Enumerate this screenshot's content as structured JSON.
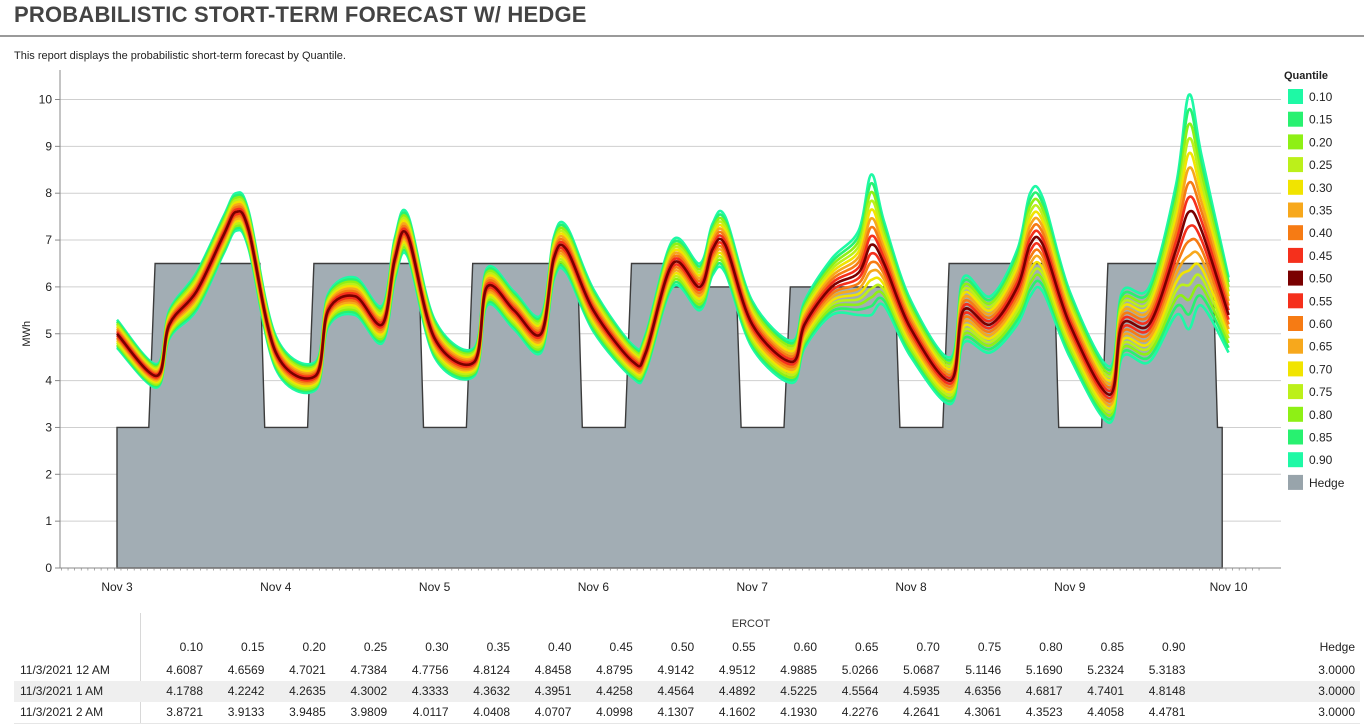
{
  "title": "PROBABILISTIC STORT-TERM FORECAST W/ HEDGE",
  "description": "This report displays the probabilistic short-term forecast by Quantile.",
  "chart_data": {
    "type": "line",
    "ylabel": "MWh",
    "ylim": [
      0,
      10.5
    ],
    "yticks": [
      0,
      1,
      2,
      3,
      4,
      5,
      6,
      7,
      8,
      9,
      10
    ],
    "x_ticks": [
      "Nov 3",
      "Nov 4",
      "Nov 5",
      "Nov 6",
      "Nov 7",
      "Nov 8",
      "Nov 9",
      "Nov 10"
    ],
    "grid": "horizontal",
    "legend": {
      "title": "Quantile",
      "placement": "right"
    },
    "series_names": [
      "0.10",
      "0.15",
      "0.20",
      "0.25",
      "0.30",
      "0.35",
      "0.40",
      "0.45",
      "0.50",
      "0.55",
      "0.60",
      "0.65",
      "0.70",
      "0.75",
      "0.80",
      "0.85",
      "0.90",
      "Hedge"
    ],
    "series_colors": [
      "#1ef9a5",
      "#28f170",
      "#8ef015",
      "#bcf01a",
      "#f1e400",
      "#f7a81c",
      "#f67b14",
      "#f5301c",
      "#7a0000",
      "#f5301c",
      "#f67b14",
      "#f7a81c",
      "#f1e400",
      "#bcf01a",
      "#8ef015",
      "#28f170",
      "#1ef9a5",
      "#98a4ab"
    ],
    "x_days": [
      0,
      0.25,
      0.33,
      0.5,
      0.67,
      0.75,
      0.83,
      1,
      1.25,
      1.33,
      1.5,
      1.67,
      1.75,
      1.83,
      2,
      2.25,
      2.33,
      2.5,
      2.67,
      2.75,
      2.83,
      3,
      3.25,
      3.33,
      3.5,
      3.67,
      3.75,
      3.83,
      4,
      4.25,
      4.33,
      4.5,
      4.67,
      4.75,
      4.83,
      5,
      5.25,
      5.33,
      5.5,
      5.67,
      5.75,
      5.83,
      6,
      6.25,
      6.33,
      6.5,
      6.67,
      6.75,
      6.83,
      7
    ],
    "median": [
      5.0,
      4.1,
      5.2,
      5.9,
      7.1,
      7.6,
      7.2,
      4.6,
      4.1,
      5.5,
      5.8,
      5.2,
      6.6,
      7.1,
      4.9,
      4.4,
      6.0,
      5.5,
      5.0,
      6.6,
      6.8,
      5.5,
      4.4,
      4.6,
      6.5,
      6.0,
      6.8,
      6.9,
      5.2,
      4.4,
      5.2,
      6.0,
      6.3,
      6.9,
      6.5,
      5.1,
      4.0,
      5.5,
      5.2,
      6.0,
      6.9,
      6.9,
      5.2,
      3.7,
      5.2,
      5.2,
      6.8,
      7.6,
      7.2,
      5.4
    ],
    "spread": [
      0.3,
      0.25,
      0.3,
      0.4,
      0.4,
      0.4,
      0.4,
      0.35,
      0.3,
      0.35,
      0.4,
      0.4,
      0.45,
      0.45,
      0.4,
      0.3,
      0.4,
      0.4,
      0.4,
      0.45,
      0.5,
      0.45,
      0.35,
      0.4,
      0.5,
      0.5,
      0.55,
      0.6,
      0.5,
      0.45,
      0.5,
      0.6,
      0.9,
      1.5,
      0.9,
      0.6,
      0.5,
      0.7,
      0.6,
      0.8,
      1.1,
      1.0,
      0.7,
      0.6,
      0.7,
      0.8,
      1.4,
      2.5,
      1.6,
      0.8
    ],
    "hedge": [
      [
        0.0,
        3.0
      ],
      [
        0.2,
        3.0
      ],
      [
        0.24,
        6.5
      ],
      [
        0.9,
        6.5
      ],
      [
        0.93,
        3.0
      ],
      [
        1.2,
        3.0
      ],
      [
        1.24,
        6.5
      ],
      [
        1.9,
        6.5
      ],
      [
        1.93,
        3.0
      ],
      [
        2.2,
        3.0
      ],
      [
        2.24,
        6.5
      ],
      [
        2.9,
        6.5
      ],
      [
        2.93,
        3.0
      ],
      [
        3.2,
        3.0
      ],
      [
        3.24,
        6.5
      ],
      [
        3.44,
        6.5
      ],
      [
        3.44,
        6.0
      ],
      [
        3.9,
        6.0
      ],
      [
        3.93,
        3.0
      ],
      [
        4.2,
        3.0
      ],
      [
        4.24,
        6.0
      ],
      [
        4.9,
        6.0
      ],
      [
        4.93,
        3.0
      ],
      [
        5.2,
        3.0
      ],
      [
        5.24,
        6.5
      ],
      [
        5.9,
        6.5
      ],
      [
        5.93,
        3.0
      ],
      [
        6.2,
        3.0
      ],
      [
        6.24,
        6.5
      ],
      [
        6.9,
        6.5
      ],
      [
        6.93,
        3.0
      ],
      [
        6.96,
        3.0
      ]
    ]
  },
  "table": {
    "group_header": "ERCOT",
    "columns": [
      "0.10",
      "0.15",
      "0.20",
      "0.25",
      "0.30",
      "0.35",
      "0.40",
      "0.45",
      "0.50",
      "0.55",
      "0.60",
      "0.65",
      "0.70",
      "0.75",
      "0.80",
      "0.85",
      "0.90",
      "Hedge"
    ],
    "rows": [
      {
        "label": "11/3/2021 12 AM",
        "values": [
          "4.6087",
          "4.6569",
          "4.7021",
          "4.7384",
          "4.7756",
          "4.8124",
          "4.8458",
          "4.8795",
          "4.9142",
          "4.9512",
          "4.9885",
          "5.0266",
          "5.0687",
          "5.1146",
          "5.1690",
          "5.2324",
          "5.3183",
          "3.0000"
        ]
      },
      {
        "label": "11/3/2021 1 AM",
        "values": [
          "4.1788",
          "4.2242",
          "4.2635",
          "4.3002",
          "4.3333",
          "4.3632",
          "4.3951",
          "4.4258",
          "4.4564",
          "4.4892",
          "4.5225",
          "4.5564",
          "4.5935",
          "4.6356",
          "4.6817",
          "4.7401",
          "4.8148",
          "3.0000"
        ]
      },
      {
        "label": "11/3/2021 2 AM",
        "values": [
          "3.8721",
          "3.9133",
          "3.9485",
          "3.9809",
          "4.0117",
          "4.0408",
          "4.0707",
          "4.0998",
          "4.1307",
          "4.1602",
          "4.1930",
          "4.2276",
          "4.2641",
          "4.3061",
          "4.3523",
          "4.4058",
          "4.4781",
          "3.0000"
        ]
      }
    ]
  }
}
